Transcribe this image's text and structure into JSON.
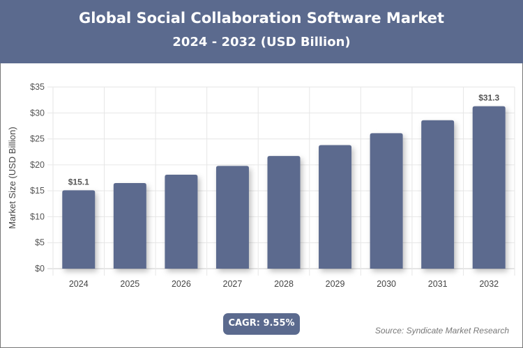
{
  "header": {
    "title": "Global Social Collaboration Software Market",
    "subtitle": "2024 - 2032 (USD Billion)"
  },
  "cagr": "CAGR: 9.55%",
  "source": "Source: Syndicate Market Research",
  "colors": {
    "bar": "#5b6a8e",
    "header": "#5b6a8e"
  },
  "chart_data": {
    "type": "bar",
    "title": "Global Social Collaboration Software Market",
    "subtitle": "2024 - 2032 (USD Billion)",
    "xlabel": "",
    "ylabel": "Market Size (USD Billion)",
    "categories": [
      "2024",
      "2025",
      "2026",
      "2027",
      "2028",
      "2029",
      "2030",
      "2031",
      "2032"
    ],
    "values": [
      15.1,
      16.5,
      18.1,
      19.8,
      21.7,
      23.8,
      26.1,
      28.6,
      31.3
    ],
    "data_labels": {
      "0": "$15.1",
      "8": "$31.3"
    },
    "ylim": [
      0,
      35
    ],
    "yticks": [
      "$0",
      "$5",
      "$10",
      "$15",
      "$20",
      "$25",
      "$30",
      "$35"
    ],
    "grid": true
  }
}
